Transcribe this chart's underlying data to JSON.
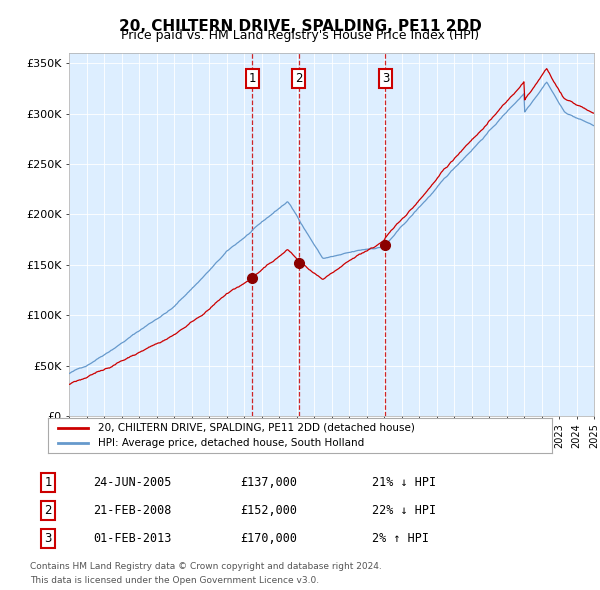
{
  "title": "20, CHILTERN DRIVE, SPALDING, PE11 2DD",
  "subtitle": "Price paid vs. HM Land Registry's House Price Index (HPI)",
  "title_fontsize": 11,
  "subtitle_fontsize": 9,
  "ylim": [
    0,
    360000
  ],
  "yticks": [
    0,
    50000,
    100000,
    150000,
    200000,
    250000,
    300000,
    350000
  ],
  "ytick_labels": [
    "£0",
    "£50K",
    "£100K",
    "£150K",
    "£200K",
    "£250K",
    "£300K",
    "£350K"
  ],
  "background_color": "#ddeeff",
  "line_color_hpi": "#6699cc",
  "line_color_price": "#cc0000",
  "transactions": [
    {
      "num": 1,
      "x": 2005.48,
      "price": 137000
    },
    {
      "num": 2,
      "x": 2008.13,
      "price": 152000
    },
    {
      "num": 3,
      "x": 2013.08,
      "price": 170000
    }
  ],
  "vline_color": "#cc0000",
  "legend_label_price": "20, CHILTERN DRIVE, SPALDING, PE11 2DD (detached house)",
  "legend_label_hpi": "HPI: Average price, detached house, South Holland",
  "footer": "Contains HM Land Registry data © Crown copyright and database right 2024.\nThis data is licensed under the Open Government Licence v3.0.",
  "table_rows": [
    {
      "num": 1,
      "date": "24-JUN-2005",
      "price": "£137,000",
      "pct": "21% ↓ HPI"
    },
    {
      "num": 2,
      "date": "21-FEB-2008",
      "price": "£152,000",
      "pct": "22% ↓ HPI"
    },
    {
      "num": 3,
      "date": "01-FEB-2013",
      "price": "£170,000",
      "pct": "2% ↑ HPI"
    }
  ]
}
